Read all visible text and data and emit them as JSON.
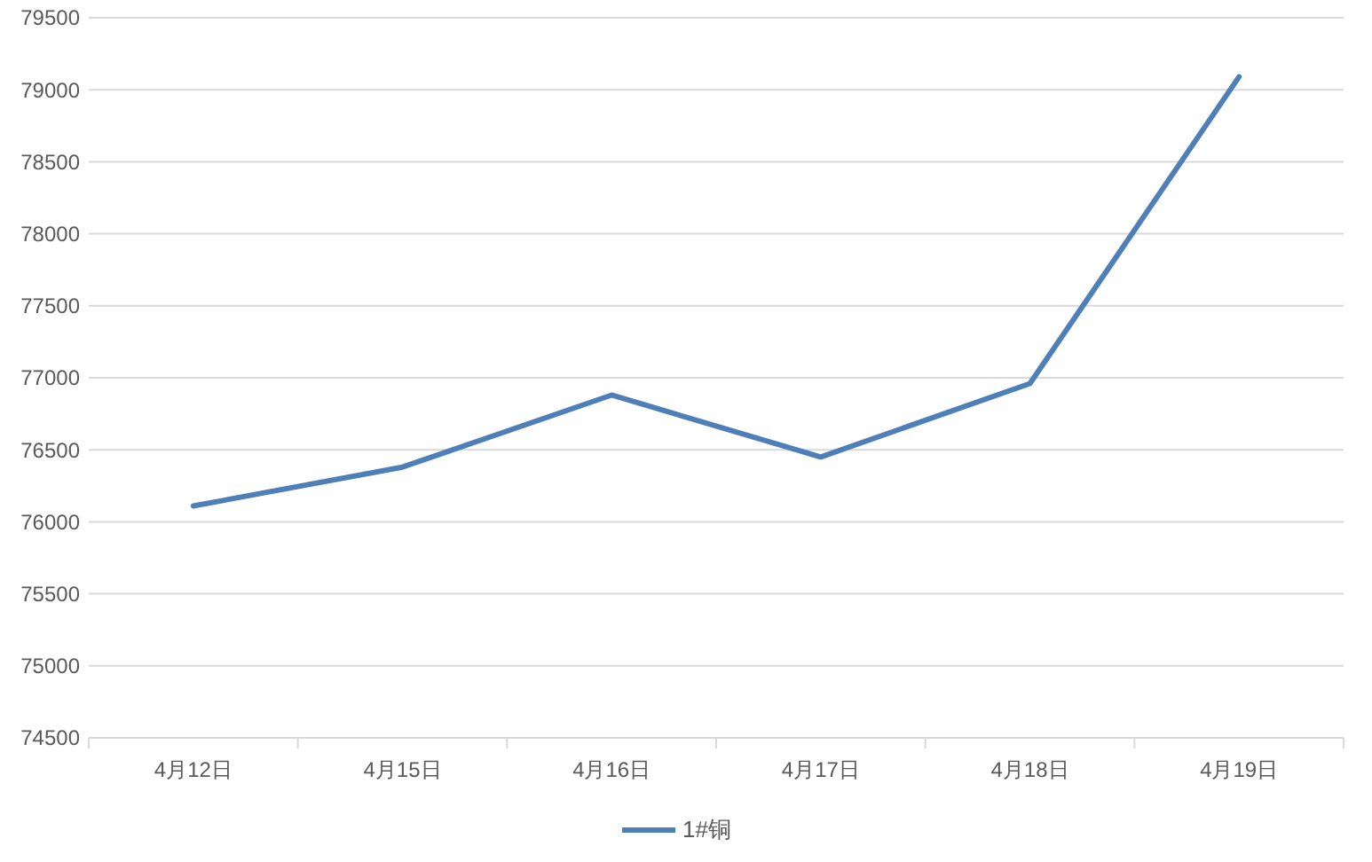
{
  "chart_data": {
    "type": "line",
    "categories": [
      "4月12日",
      "4月15日",
      "4月16日",
      "4月17日",
      "4月18日",
      "4月19日"
    ],
    "series": [
      {
        "name": "1#铜",
        "color": "#4f7fb8",
        "values": [
          76110,
          76380,
          76880,
          76450,
          76960,
          79090
        ]
      }
    ],
    "ylim": [
      74500,
      79500
    ],
    "yticks": [
      74500,
      75000,
      75500,
      76000,
      76500,
      77000,
      77500,
      78000,
      78500,
      79000,
      79500
    ],
    "grid": "y",
    "legend": "bottom",
    "marker": "none",
    "line_style": "solid"
  }
}
